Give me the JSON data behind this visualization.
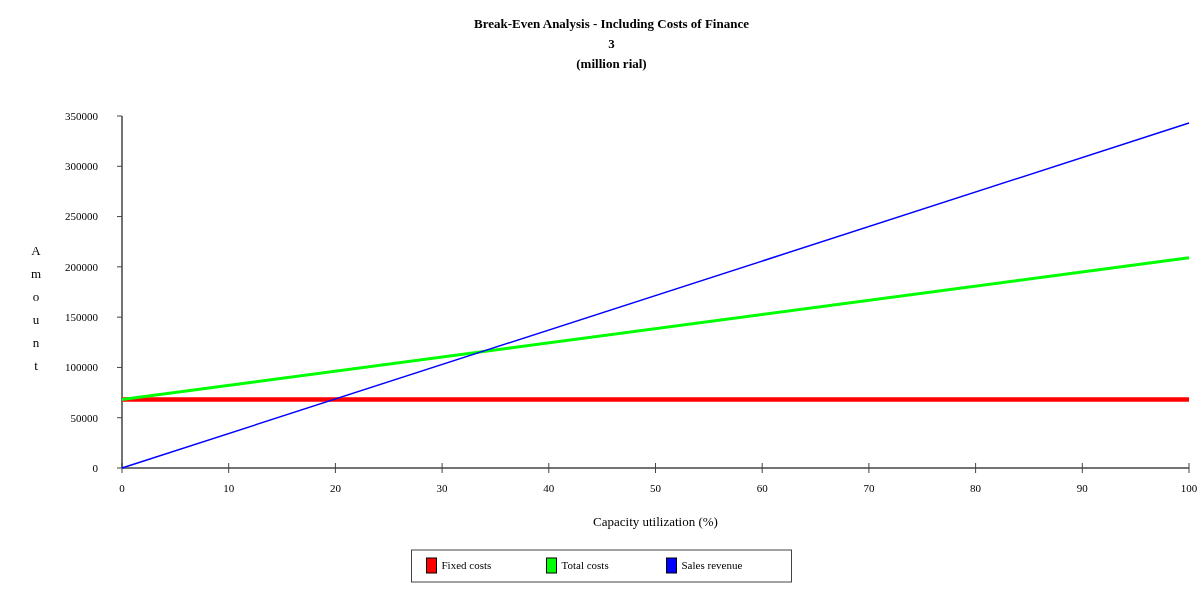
{
  "chart_data": {
    "type": "line",
    "title": "Break-Even Analysis - Including Costs of Finance",
    "subtitle": "3",
    "annotations": [
      "(million rial)"
    ],
    "xlabel": "Capacity utilization (%)",
    "ylabel": "Amount",
    "x": [
      0,
      100
    ],
    "series": [
      {
        "name": "Fixed costs",
        "color": "#ff0000",
        "values": [
          68000,
          68000
        ]
      },
      {
        "name": "Total costs",
        "color": "#00ff00",
        "values": [
          68000,
          209000
        ]
      },
      {
        "name": "Sales revenue",
        "color": "#0000ff",
        "values": [
          0,
          343000
        ]
      }
    ],
    "xlim": [
      0,
      100
    ],
    "xticks": [
      0,
      10,
      20,
      30,
      40,
      50,
      60,
      70,
      80,
      90,
      100
    ],
    "ylim": [
      0,
      350000
    ],
    "yticks": [
      0,
      50000,
      100000,
      150000,
      200000,
      250000,
      300000,
      350000
    ],
    "grid": false,
    "legend": "bottom",
    "marker": "none",
    "line_style": "solid"
  }
}
